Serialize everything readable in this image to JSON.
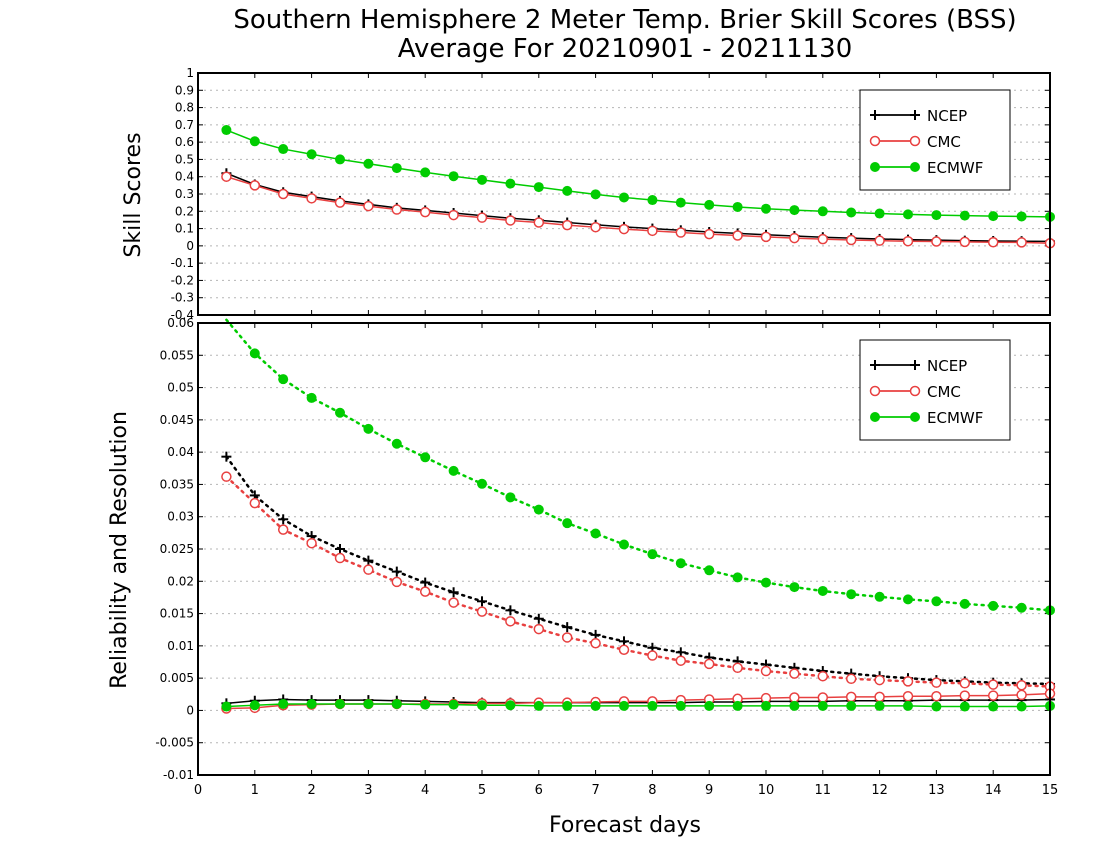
{
  "title_line1": "Southern Hemisphere 2 Meter Temp. Brier Skill Scores (BSS)",
  "title_line2": "Average For 20210901 - 20211130",
  "xlabel": "Forecast days",
  "colors": {
    "NCEP": "#000000",
    "CMC": "#e84040",
    "ECMWF": "#00cc00"
  },
  "chart_data": [
    {
      "type": "line",
      "panel": "top",
      "ylabel": "Skill Scores",
      "xlim": [
        0,
        15
      ],
      "ylim": [
        -0.4,
        1
      ],
      "grid": true,
      "legend_position": "top-right",
      "x_ticks": [
        0,
        1,
        2,
        3,
        4,
        5,
        6,
        7,
        8,
        9,
        10,
        11,
        12,
        13,
        14,
        15
      ],
      "y_ticks": [
        -0.4,
        -0.3,
        -0.2,
        -0.1,
        0,
        0.1,
        0.2,
        0.3,
        0.4,
        0.5,
        0.6,
        0.7,
        0.8,
        0.9,
        1
      ],
      "y_tick_labels": [
        "-0.4",
        "-0.3",
        "-0.2",
        "-0.1",
        "0",
        "0.1",
        "0.2",
        "0.3",
        "0.4",
        "0.5",
        "0.6",
        "0.7",
        "0.8",
        "0.9",
        "1"
      ],
      "x": [
        0.5,
        1,
        1.5,
        2,
        2.5,
        3,
        3.5,
        4,
        4.5,
        5,
        5.5,
        6,
        6.5,
        7,
        7.5,
        8,
        8.5,
        9,
        9.5,
        10,
        10.5,
        11,
        11.5,
        12,
        12.5,
        13,
        13.5,
        14,
        14.5,
        15
      ],
      "series": [
        {
          "name": "NCEP",
          "marker": "plus",
          "style": "solid",
          "values": [
            0.42,
            0.355,
            0.31,
            0.285,
            0.26,
            0.24,
            0.22,
            0.205,
            0.19,
            0.175,
            0.16,
            0.148,
            0.135,
            0.122,
            0.11,
            0.1,
            0.09,
            0.08,
            0.072,
            0.064,
            0.057,
            0.05,
            0.045,
            0.04,
            0.036,
            0.033,
            0.03,
            0.028,
            0.027,
            0.026
          ]
        },
        {
          "name": "CMC",
          "marker": "circle-open",
          "style": "solid",
          "values": [
            0.4,
            0.35,
            0.3,
            0.275,
            0.25,
            0.23,
            0.21,
            0.195,
            0.178,
            0.163,
            0.147,
            0.135,
            0.12,
            0.108,
            0.097,
            0.087,
            0.077,
            0.068,
            0.06,
            0.052,
            0.045,
            0.039,
            0.034,
            0.03,
            0.027,
            0.025,
            0.023,
            0.021,
            0.02,
            0.015
          ]
        },
        {
          "name": "ECMWF",
          "marker": "circle-filled",
          "style": "solid",
          "values": [
            0.67,
            0.605,
            0.56,
            0.53,
            0.5,
            0.475,
            0.45,
            0.425,
            0.403,
            0.382,
            0.36,
            0.34,
            0.318,
            0.298,
            0.28,
            0.265,
            0.25,
            0.237,
            0.225,
            0.215,
            0.207,
            0.2,
            0.193,
            0.187,
            0.182,
            0.178,
            0.175,
            0.172,
            0.17,
            0.168
          ]
        }
      ]
    },
    {
      "type": "line",
      "panel": "bottom",
      "ylabel": "Reliability and Resolution",
      "xlim": [
        0,
        15
      ],
      "ylim": [
        -0.01,
        0.06
      ],
      "grid": true,
      "legend_position": "top-right",
      "x_ticks": [
        0,
        1,
        2,
        3,
        4,
        5,
        6,
        7,
        8,
        9,
        10,
        11,
        12,
        13,
        14,
        15
      ],
      "y_ticks": [
        -0.01,
        -0.005,
        0,
        0.005,
        0.01,
        0.015,
        0.02,
        0.025,
        0.03,
        0.035,
        0.04,
        0.045,
        0.05,
        0.055,
        0.06
      ],
      "y_tick_labels": [
        "-0.01",
        "-0.005",
        "0",
        "0.005",
        "0.01",
        "0.015",
        "0.02",
        "0.025",
        "0.03",
        "0.035",
        "0.04",
        "0.045",
        "0.05",
        "0.055",
        "0.06"
      ],
      "x": [
        0.5,
        1,
        1.5,
        2,
        2.5,
        3,
        3.5,
        4,
        4.5,
        5,
        5.5,
        6,
        6.5,
        7,
        7.5,
        8,
        8.5,
        9,
        9.5,
        10,
        10.5,
        11,
        11.5,
        12,
        12.5,
        13,
        13.5,
        14,
        14.5,
        15
      ],
      "series": [
        {
          "name": "NCEP",
          "group": "resolution",
          "marker": "plus",
          "style": "dotted",
          "values": [
            0.0393,
            0.0333,
            0.0296,
            0.027,
            0.025,
            0.0232,
            0.0215,
            0.0198,
            0.0183,
            0.0169,
            0.0155,
            0.0142,
            0.0129,
            0.0117,
            0.0107,
            0.0097,
            0.009,
            0.0082,
            0.0076,
            0.0071,
            0.0066,
            0.0061,
            0.0057,
            0.0053,
            0.005,
            0.0047,
            0.0045,
            0.0043,
            0.0042,
            0.0041
          ]
        },
        {
          "name": "CMC",
          "group": "resolution",
          "marker": "circle-open",
          "style": "dotted",
          "values": [
            0.0362,
            0.0321,
            0.028,
            0.0259,
            0.0236,
            0.0218,
            0.0199,
            0.0184,
            0.0167,
            0.0153,
            0.0138,
            0.0126,
            0.0113,
            0.0104,
            0.0094,
            0.0085,
            0.0077,
            0.0072,
            0.0066,
            0.0061,
            0.0057,
            0.0053,
            0.0049,
            0.0047,
            0.0045,
            0.0043,
            0.0042,
            0.004,
            0.0039,
            0.0037
          ]
        },
        {
          "name": "ECMWF",
          "group": "resolution",
          "marker": "circle-filled",
          "style": "dotted",
          "values": [
            0.0605,
            0.0553,
            0.0513,
            0.0484,
            0.0461,
            0.0436,
            0.0413,
            0.0392,
            0.0371,
            0.0351,
            0.033,
            0.0311,
            0.029,
            0.0274,
            0.0257,
            0.0242,
            0.0228,
            0.0217,
            0.0206,
            0.0198,
            0.0191,
            0.0185,
            0.018,
            0.0176,
            0.0172,
            0.0169,
            0.0165,
            0.0162,
            0.0159,
            0.0155
          ]
        },
        {
          "name": "NCEP",
          "group": "reliability",
          "marker": "plus",
          "style": "solid",
          "values": [
            0.0011,
            0.0015,
            0.0017,
            0.0016,
            0.0016,
            0.0016,
            0.0015,
            0.0014,
            0.0013,
            0.0012,
            0.0012,
            0.0012,
            0.0012,
            0.0012,
            0.0012,
            0.0012,
            0.0012,
            0.0013,
            0.0013,
            0.0014,
            0.0014,
            0.0014,
            0.0015,
            0.0015,
            0.0015,
            0.0016,
            0.0016,
            0.0016,
            0.0016,
            0.0017
          ]
        },
        {
          "name": "CMC",
          "group": "reliability",
          "marker": "circle-open",
          "style": "solid",
          "values": [
            0.0003,
            0.0004,
            0.0008,
            0.0009,
            0.001,
            0.001,
            0.001,
            0.001,
            0.001,
            0.0011,
            0.0011,
            0.0012,
            0.0012,
            0.0013,
            0.0014,
            0.0014,
            0.0016,
            0.0017,
            0.0018,
            0.0019,
            0.002,
            0.002,
            0.0021,
            0.0021,
            0.0022,
            0.0022,
            0.0023,
            0.0023,
            0.0024,
            0.0026
          ]
        },
        {
          "name": "ECMWF",
          "group": "reliability",
          "marker": "circle-filled",
          "style": "solid",
          "values": [
            0.0006,
            0.0008,
            0.001,
            0.001,
            0.001,
            0.001,
            0.001,
            0.0009,
            0.0009,
            0.0008,
            0.0008,
            0.0007,
            0.0007,
            0.0007,
            0.0007,
            0.0007,
            0.0007,
            0.0007,
            0.0007,
            0.0007,
            0.0007,
            0.0007,
            0.0007,
            0.0007,
            0.0007,
            0.0006,
            0.0006,
            0.0006,
            0.0006,
            0.0007
          ]
        }
      ],
      "legend": [
        "NCEP",
        "CMC",
        "ECMWF"
      ]
    }
  ]
}
